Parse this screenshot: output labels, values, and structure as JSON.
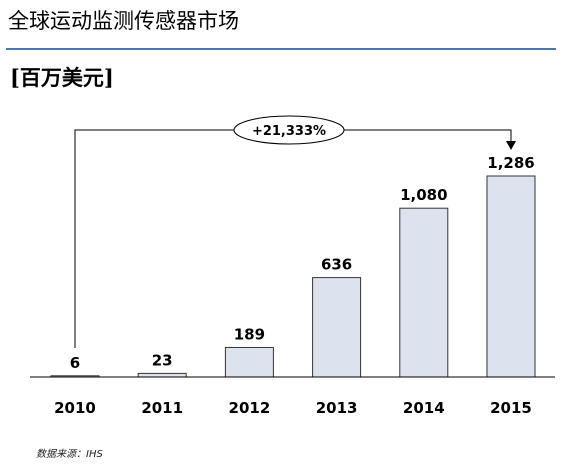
{
  "title": "全球运动监测传感器市场",
  "unit_label": "[百万美元]",
  "source": "数据来源：IHS",
  "growth_label": "+21,333%",
  "colors": {
    "bar_fill": "#dde3ee",
    "bar_stroke": "#333333",
    "rule": "#4a78b5"
  },
  "chart_data": {
    "type": "bar",
    "categories": [
      "2010",
      "2011",
      "2012",
      "2013",
      "2014",
      "2015"
    ],
    "values": [
      6,
      23,
      189,
      636,
      1080,
      1286
    ],
    "value_labels": [
      "6",
      "23",
      "189",
      "636",
      "1,080",
      "1,286"
    ],
    "ylim": [
      0,
      1286
    ],
    "grid": false,
    "annotation": {
      "from": "2010",
      "to": "2015",
      "text": "+21,333%"
    }
  }
}
